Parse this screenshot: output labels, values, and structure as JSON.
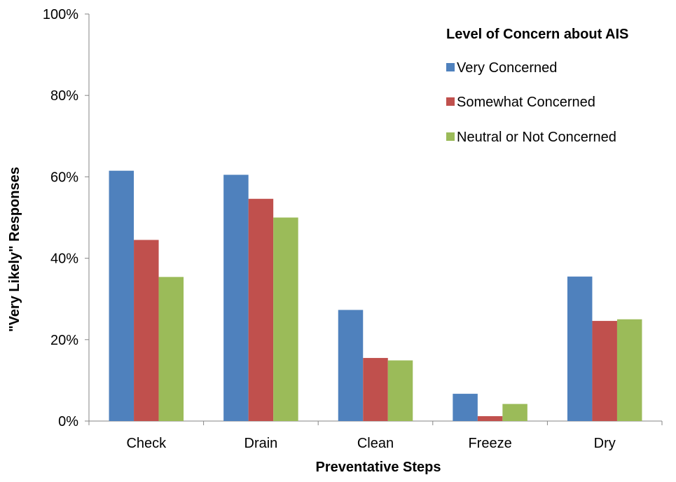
{
  "chart_data": {
    "type": "bar",
    "categories": [
      "Check",
      "Drain",
      "Clean",
      "Freeze",
      "Dry"
    ],
    "series": [
      {
        "name": "Very Concerned",
        "color": "#4F81BD",
        "values": [
          61.5,
          60.5,
          27.3,
          6.7,
          35.5
        ]
      },
      {
        "name": "Somewhat Concerned",
        "color": "#C0504D",
        "values": [
          44.5,
          54.6,
          15.5,
          1.2,
          24.6
        ]
      },
      {
        "name": "Neutral or Not Concerned",
        "color": "#9BBB59",
        "values": [
          35.4,
          50.0,
          14.9,
          4.2,
          25.0
        ]
      }
    ],
    "xlabel": "Preventative Steps",
    "ylabel": "\"Very Likely\" Responses",
    "ylim": [
      0,
      100
    ],
    "yticks": [
      0,
      20,
      40,
      60,
      80,
      100
    ],
    "ytick_labels": [
      "0%",
      "20%",
      "40%",
      "60%",
      "80%",
      "100%"
    ],
    "legend_title": "Level of Concern about AIS",
    "legend_position": "top-right",
    "grid": false
  }
}
